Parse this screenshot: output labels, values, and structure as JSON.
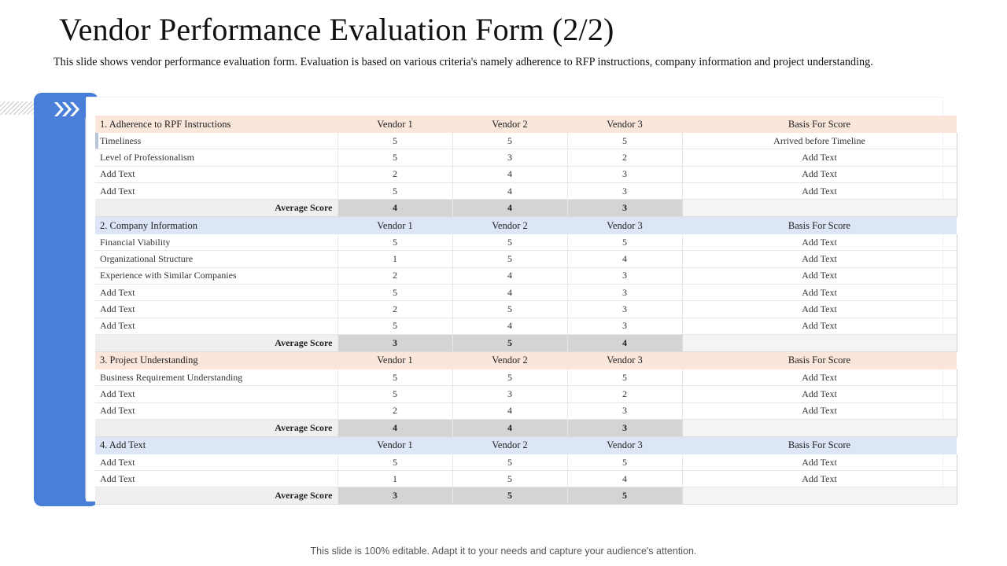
{
  "title": "Vendor Performance Evaluation Form (2/2)",
  "description": "This slide shows vendor performance evaluation form. Evaluation is based on various criteria's namely adherence to RFP instructions, company information and project understanding.",
  "footer": "This slide is 100% editable. Adapt it to your needs and capture your audience's attention.",
  "colors": {
    "accent_blue": "#4a7fd9",
    "peach_header": "#fbe6dc",
    "blue_header": "#dde6f6"
  },
  "icons": {
    "chevrons": "triple-chevron-right-icon"
  },
  "average_label": "Average Score",
  "sections": [
    {
      "header": {
        "label": "1. Adherence to RPF  Instructions",
        "v1": "Vendor 1",
        "v2": "Vendor 2",
        "v3": "Vendor 3",
        "basis": "Basis For Score"
      },
      "rows": [
        {
          "criterion": "Timeliness",
          "v1": "5",
          "v2": "5",
          "v3": "5",
          "basis": "Arrived before Timeline"
        },
        {
          "criterion": "Level of Professionalism",
          "v1": "5",
          "v2": "3",
          "v3": "2",
          "basis": "Add Text"
        },
        {
          "criterion": "Add Text",
          "v1": "2",
          "v2": "4",
          "v3": "3",
          "basis": "Add Text"
        },
        {
          "criterion": "Add Text",
          "v1": "5",
          "v2": "4",
          "v3": "3",
          "basis": "Add Text"
        }
      ],
      "average": {
        "v1": "4",
        "v2": "4",
        "v3": "3"
      }
    },
    {
      "header": {
        "label": "2. Company Information",
        "v1": "Vendor 1",
        "v2": "Vendor 2",
        "v3": "Vendor 3",
        "basis": "Basis For Score"
      },
      "rows": [
        {
          "criterion": "Financial  Viability",
          "v1": "5",
          "v2": "5",
          "v3": "5",
          "basis": "Add Text"
        },
        {
          "criterion": "Organizational Structure",
          "v1": "1",
          "v2": "5",
          "v3": "4",
          "basis": "Add Text"
        },
        {
          "criterion": "Experience with Similar  Companies",
          "v1": "2",
          "v2": "4",
          "v3": "3",
          "basis": "Add Text"
        },
        {
          "criterion": "Add Text",
          "v1": "5",
          "v2": "4",
          "v3": "3",
          "basis": "Add Text"
        },
        {
          "criterion": "Add Text",
          "v1": "2",
          "v2": "5",
          "v3": "3",
          "basis": "Add Text"
        },
        {
          "criterion": "Add Text",
          "v1": "5",
          "v2": "4",
          "v3": "3",
          "basis": "Add Text"
        }
      ],
      "average": {
        "v1": "3",
        "v2": "5",
        "v3": "4"
      }
    },
    {
      "header": {
        "label": "3. Project Understanding",
        "v1": "Vendor 1",
        "v2": "Vendor 2",
        "v3": "Vendor 3",
        "basis": "Basis For Score"
      },
      "rows": [
        {
          "criterion": "Business Requirement Understanding",
          "v1": "5",
          "v2": "5",
          "v3": "5",
          "basis": "Add Text"
        },
        {
          "criterion": "Add Text",
          "v1": "5",
          "v2": "3",
          "v3": "2",
          "basis": "Add Text"
        },
        {
          "criterion": "Add Text",
          "v1": "2",
          "v2": "4",
          "v3": "3",
          "basis": "Add Text"
        }
      ],
      "average": {
        "v1": "4",
        "v2": "4",
        "v3": "3"
      }
    },
    {
      "header": {
        "label": "4. Add Text",
        "v1": "Vendor 1",
        "v2": "Vendor 2",
        "v3": "Vendor 3",
        "basis": "Basis For Score"
      },
      "rows": [
        {
          "criterion": "Add Text",
          "v1": "5",
          "v2": "5",
          "v3": "5",
          "basis": "Add Text"
        },
        {
          "criterion": "Add Text",
          "v1": "1",
          "v2": "5",
          "v3": "4",
          "basis": "Add Text"
        }
      ],
      "average": {
        "v1": "3",
        "v2": "5",
        "v3": "5"
      }
    }
  ]
}
